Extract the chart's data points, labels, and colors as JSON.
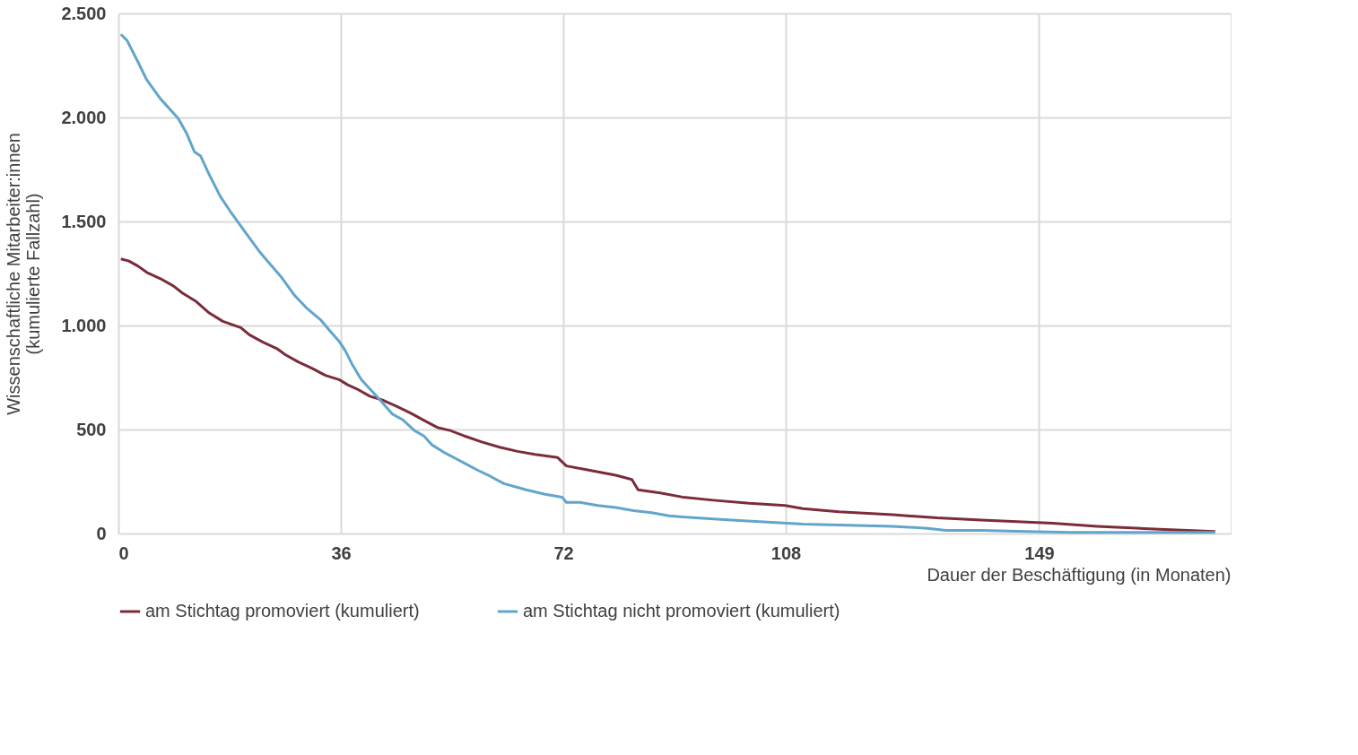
{
  "chart_data": {
    "type": "line",
    "xlabel": "Dauer der Beschäftigung (in Monaten)",
    "ylabel": "Wissenschaftliche Mitarbeiter:innen\n(kumulierte  Fallzahl)",
    "xlim": [
      0,
      180
    ],
    "xticks": [
      0,
      36,
      72,
      108,
      149
    ],
    "ylim": [
      0,
      2500
    ],
    "yticks": [
      {
        "value": 0,
        "label": "0"
      },
      {
        "value": 500,
        "label": "500"
      },
      {
        "value": 1000,
        "label": "1.000"
      },
      {
        "value": 1500,
        "label": "1.500"
      },
      {
        "value": 2000,
        "label": "2.000"
      },
      {
        "value": 2500,
        "label": "2.500"
      }
    ],
    "grid": true,
    "legend": "bottom",
    "marker": "none",
    "line_style": "solid",
    "series": [
      {
        "name": "am Stichtag promoviert (kumuliert)",
        "color": "#7b2c3a",
        "x": [
          0.4,
          1.7,
          3.2,
          4.6,
          6.8,
          8.9,
          10.4,
          12.6,
          14.7,
          16.9,
          19.8,
          21.2,
          23.4,
          25.6,
          27.0,
          29.1,
          31.3,
          33.5,
          35.7,
          37.1,
          38.6,
          40.7,
          42.9,
          45.1,
          47.2,
          49.4,
          51.6,
          53.7,
          55.9,
          58.8,
          61.7,
          64.6,
          67.4,
          71.1,
          72.5,
          76.1,
          80.5,
          83.1,
          84.1,
          87.7,
          91.3,
          96.3,
          102.1,
          107.9,
          110.8,
          116.6,
          125.3,
          132.5,
          139.7,
          151.2,
          158.4,
          168.5,
          177.5
        ],
        "values": [
          1320,
          1310,
          1285,
          1255,
          1225,
          1190,
          1155,
          1115,
          1060,
          1020,
          990,
          955,
          920,
          890,
          860,
          825,
          795,
          760,
          740,
          715,
          695,
          660,
          640,
          610,
          580,
          545,
          510,
          495,
          470,
          440,
          415,
          395,
          380,
          365,
          325,
          305,
          280,
          260,
          210,
          195,
          175,
          160,
          145,
          135,
          120,
          105,
          90,
          75,
          65,
          50,
          35,
          20,
          10
        ]
      },
      {
        "name": "am Stichtag nicht promoviert (kumuliert)",
        "color": "#62a5cb",
        "x": [
          0.4,
          1.4,
          3.2,
          4.6,
          6.8,
          9.7,
          11.1,
          12.3,
          13.3,
          14.7,
          16.5,
          18.3,
          20.5,
          22.7,
          24.1,
          26.3,
          28.5,
          30.6,
          32.8,
          34.2,
          35.7,
          36.7,
          37.8,
          39.3,
          40.7,
          42.4,
          44.3,
          46.1,
          47.9,
          49.4,
          50.8,
          53.0,
          55.9,
          58.1,
          60.2,
          62.4,
          66.0,
          68.9,
          71.8,
          72.5,
          74.7,
          77.6,
          80.5,
          83.4,
          86.3,
          89.1,
          93.5,
          99.2,
          105.0,
          110.8,
          118.0,
          125.3,
          131.0,
          133.9,
          139.7,
          146.9,
          154.2,
          177.5
        ],
        "values": [
          2400,
          2370,
          2265,
          2180,
          2090,
          1995,
          1920,
          1835,
          1815,
          1725,
          1620,
          1540,
          1450,
          1360,
          1310,
          1235,
          1145,
          1080,
          1025,
          975,
          925,
          880,
          815,
          740,
          695,
          640,
          575,
          545,
          495,
          470,
          425,
          385,
          340,
          305,
          275,
          240,
          210,
          190,
          175,
          150,
          150,
          135,
          125,
          110,
          100,
          85,
          75,
          65,
          55,
          45,
          40,
          35,
          25,
          15,
          15,
          10,
          5,
          5
        ]
      }
    ]
  }
}
